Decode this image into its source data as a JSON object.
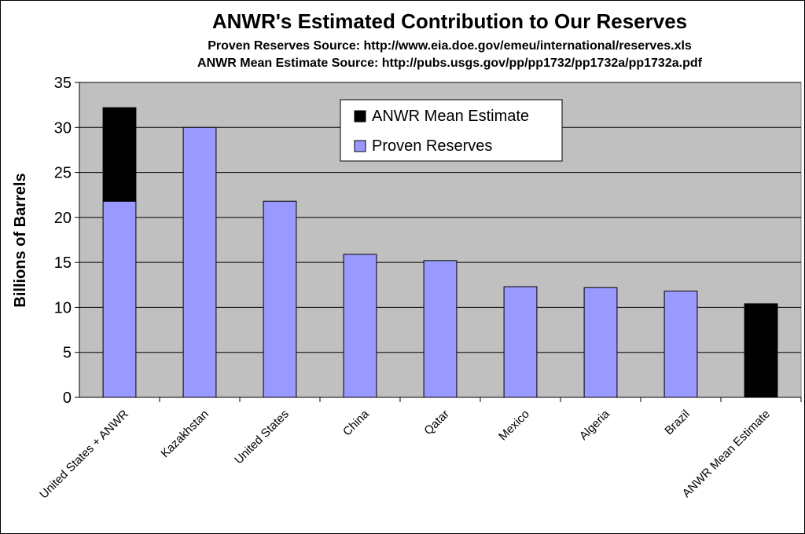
{
  "chart_data": {
    "type": "bar",
    "title": "ANWR's Estimated Contribution to Our Reserves",
    "subtitles": [
      "Proven Reserves Source: http://www.eia.doe.gov/emeu/international/reserves.xls",
      "ANWR Mean Estimate Source: http://pubs.usgs.gov/pp/pp1732/pp1732a/pp1732a.pdf"
    ],
    "xlabel": "",
    "ylabel": "Billions of Barrels",
    "ylim": [
      0,
      35
    ],
    "yticks": [
      0,
      5,
      10,
      15,
      20,
      25,
      30,
      35
    ],
    "grid": true,
    "stacked": true,
    "legend_position": "top-center",
    "categories": [
      "United States + ANWR",
      "Kazakhstan",
      "United States",
      "China",
      "Qatar",
      "Mexico",
      "Algeria",
      "Brazil",
      "ANWR Mean Estimate"
    ],
    "series": [
      {
        "name": "Proven Reserves",
        "color": "#9999ff",
        "values": [
          21.8,
          30.0,
          21.8,
          15.9,
          15.2,
          12.3,
          12.2,
          11.8,
          0
        ]
      },
      {
        "name": "ANWR Mean Estimate",
        "color": "#000000",
        "values": [
          10.4,
          0,
          0,
          0,
          0,
          0,
          0,
          0,
          10.4
        ]
      }
    ],
    "legend_order": [
      "ANWR Mean Estimate",
      "Proven Reserves"
    ],
    "plot_background": "#c0c0c0"
  }
}
